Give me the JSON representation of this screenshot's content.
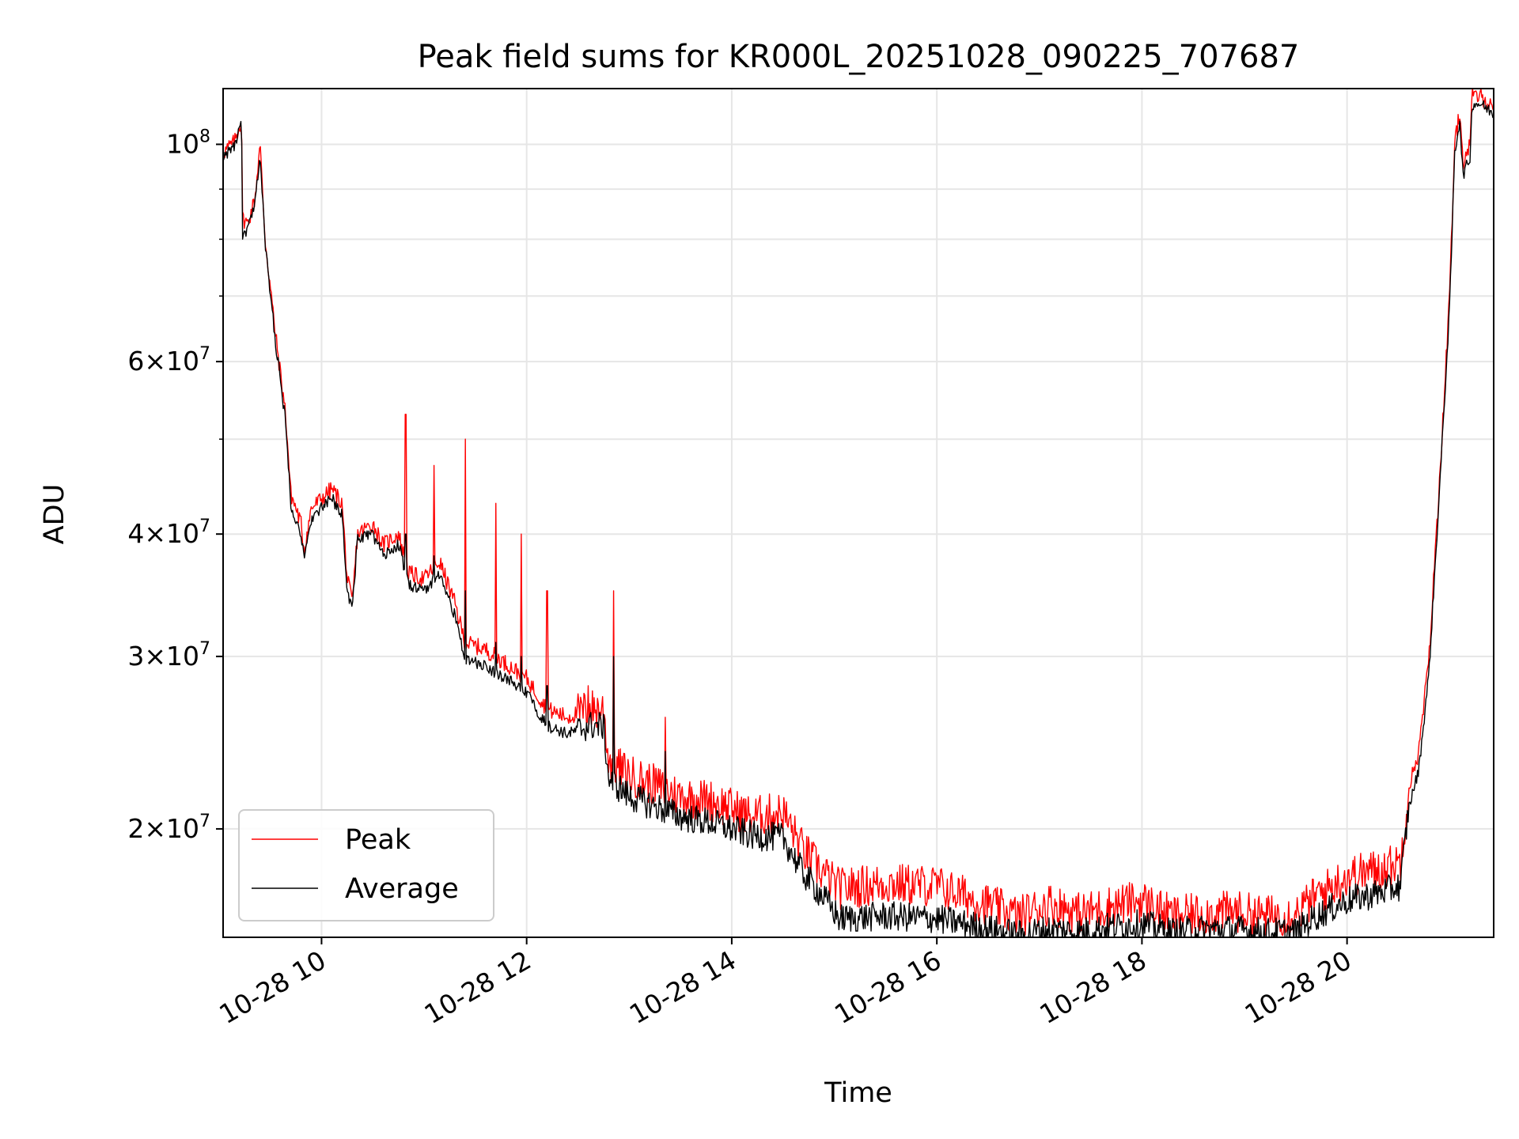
{
  "chart_data": {
    "type": "line",
    "title": "Peak field sums for KR000L_20251028_090225_707687",
    "xlabel": "Time",
    "ylabel": "ADU",
    "yscale": "log",
    "grid": true,
    "legend_position": "lower-left",
    "x_unit": "hours (2025-10-28)",
    "xlim": [
      9.04,
      21.43
    ],
    "ylim": [
      15500000,
      114000000
    ],
    "x_ticks": [
      {
        "value": 10,
        "label": "10-28 10"
      },
      {
        "value": 12,
        "label": "10-28 12"
      },
      {
        "value": 14,
        "label": "10-28 14"
      },
      {
        "value": 16,
        "label": "10-28 16"
      },
      {
        "value": 18,
        "label": "10-28 18"
      },
      {
        "value": 20,
        "label": "10-28 20"
      }
    ],
    "y_ticks": [
      {
        "value": 20000000,
        "mantissa": "2",
        "base": "10",
        "exp": "7"
      },
      {
        "value": 30000000,
        "mantissa": "3",
        "base": "10",
        "exp": "7"
      },
      {
        "value": 40000000,
        "mantissa": "4",
        "base": "10",
        "exp": "7"
      },
      {
        "value": 60000000,
        "mantissa": "6",
        "base": "10",
        "exp": "7"
      },
      {
        "value": 100000000,
        "mantissa": "",
        "base": "10",
        "exp": "8"
      }
    ],
    "y_minor_ticks": [
      50000000,
      70000000,
      80000000,
      90000000
    ],
    "series": [
      {
        "name": "Peak",
        "color": "#ff0000",
        "noise": 0.05,
        "points": [
          [
            9.04,
            98000000
          ],
          [
            9.1,
            99500000
          ],
          [
            9.15,
            100500000
          ],
          [
            9.22,
            106000000
          ],
          [
            9.23,
            84000000
          ],
          [
            9.28,
            83000000
          ],
          [
            9.35,
            88000000
          ],
          [
            9.4,
            100000000
          ],
          [
            9.45,
            80000000
          ],
          [
            9.55,
            64000000
          ],
          [
            9.65,
            53000000
          ],
          [
            9.7,
            44000000
          ],
          [
            9.8,
            41000000
          ],
          [
            9.83,
            38500000
          ],
          [
            9.9,
            42500000
          ],
          [
            10.1,
            44500000
          ],
          [
            10.2,
            43000000
          ],
          [
            10.25,
            36000000
          ],
          [
            10.3,
            34000000
          ],
          [
            10.35,
            40000000
          ],
          [
            10.5,
            41000000
          ],
          [
            10.6,
            39000000
          ],
          [
            10.75,
            40000000
          ],
          [
            10.85,
            36500000
          ],
          [
            11.0,
            36000000
          ],
          [
            11.15,
            37500000
          ],
          [
            11.3,
            34000000
          ],
          [
            11.4,
            31000000
          ],
          [
            11.6,
            30500000
          ],
          [
            11.8,
            29500000
          ],
          [
            12.0,
            28500000
          ],
          [
            12.2,
            26500000
          ],
          [
            12.4,
            26000000
          ],
          [
            12.6,
            26500000
          ],
          [
            12.75,
            26500000
          ],
          [
            12.8,
            23500000
          ],
          [
            13.0,
            22700000
          ],
          [
            13.2,
            22300000
          ],
          [
            13.5,
            21600000
          ],
          [
            13.8,
            21400000
          ],
          [
            14.2,
            20600000
          ],
          [
            14.5,
            20800000
          ],
          [
            14.7,
            19000000
          ],
          [
            14.9,
            18000000
          ],
          [
            15.05,
            17400000
          ],
          [
            15.5,
            17600000
          ],
          [
            16.0,
            17500000
          ],
          [
            16.4,
            16900000
          ],
          [
            16.8,
            16300000
          ],
          [
            17.1,
            16800000
          ],
          [
            17.4,
            16400000
          ],
          [
            17.7,
            16700000
          ],
          [
            18.0,
            16900000
          ],
          [
            18.3,
            16300000
          ],
          [
            18.6,
            16400000
          ],
          [
            18.9,
            16500000
          ],
          [
            19.2,
            16300000
          ],
          [
            19.5,
            16400000
          ],
          [
            19.7,
            17100000
          ],
          [
            20.0,
            17900000
          ],
          [
            20.3,
            18200000
          ],
          [
            20.52,
            18500000
          ],
          [
            20.6,
            22000000
          ],
          [
            20.7,
            24000000
          ],
          [
            20.8,
            30000000
          ],
          [
            20.9,
            45000000
          ],
          [
            21.0,
            70000000
          ],
          [
            21.05,
            100000000
          ],
          [
            21.1,
            108000000
          ],
          [
            21.13,
            96000000
          ],
          [
            21.2,
            100000000
          ],
          [
            21.22,
            112000000
          ],
          [
            21.3,
            112000000
          ],
          [
            21.43,
            109000000
          ]
        ],
        "spikes": [
          [
            10.82,
            53000000
          ],
          [
            11.1,
            47000000
          ],
          [
            11.4,
            50000000
          ],
          [
            11.7,
            43000000
          ],
          [
            11.95,
            40000000
          ],
          [
            12.2,
            35000000
          ],
          [
            12.6,
            28000000
          ],
          [
            12.85,
            35000000
          ],
          [
            13.35,
            26000000
          ]
        ]
      },
      {
        "name": "Average",
        "color": "#000000",
        "noise": 0.035,
        "points": [
          [
            9.04,
            97000000
          ],
          [
            9.1,
            98500000
          ],
          [
            9.15,
            99500000
          ],
          [
            9.22,
            105000000
          ],
          [
            9.23,
            80000000
          ],
          [
            9.28,
            82000000
          ],
          [
            9.35,
            86500000
          ],
          [
            9.4,
            98000000
          ],
          [
            9.45,
            79000000
          ],
          [
            9.55,
            63000000
          ],
          [
            9.65,
            52000000
          ],
          [
            9.7,
            43000000
          ],
          [
            9.8,
            40000000
          ],
          [
            9.83,
            37500000
          ],
          [
            9.9,
            41500000
          ],
          [
            10.1,
            43500000
          ],
          [
            10.2,
            42000000
          ],
          [
            10.25,
            35000000
          ],
          [
            10.3,
            33500000
          ],
          [
            10.35,
            39500000
          ],
          [
            10.5,
            40000000
          ],
          [
            10.6,
            38000000
          ],
          [
            10.75,
            39000000
          ],
          [
            10.85,
            35500000
          ],
          [
            11.0,
            35000000
          ],
          [
            11.15,
            36500000
          ],
          [
            11.3,
            33000000
          ],
          [
            11.4,
            29800000
          ],
          [
            11.6,
            29300000
          ],
          [
            11.8,
            28500000
          ],
          [
            12.0,
            27500000
          ],
          [
            12.2,
            25500000
          ],
          [
            12.4,
            25000000
          ],
          [
            12.6,
            25500000
          ],
          [
            12.75,
            25500000
          ],
          [
            12.8,
            22500000
          ],
          [
            13.0,
            21600000
          ],
          [
            13.2,
            21200000
          ],
          [
            13.5,
            20600000
          ],
          [
            13.8,
            20300000
          ],
          [
            14.2,
            19700000
          ],
          [
            14.5,
            19600000
          ],
          [
            14.7,
            18000000
          ],
          [
            14.9,
            17000000
          ],
          [
            15.05,
            16200000
          ],
          [
            15.5,
            16300000
          ],
          [
            16.0,
            16200000
          ],
          [
            16.4,
            15900000
          ],
          [
            16.8,
            15600000
          ],
          [
            17.1,
            15800000
          ],
          [
            17.4,
            15700000
          ],
          [
            17.7,
            15900000
          ],
          [
            18.0,
            16000000
          ],
          [
            18.3,
            15700000
          ],
          [
            18.6,
            15800000
          ],
          [
            18.9,
            15800000
          ],
          [
            19.2,
            15700000
          ],
          [
            19.5,
            15700000
          ],
          [
            19.7,
            16300000
          ],
          [
            20.0,
            16900000
          ],
          [
            20.3,
            17200000
          ],
          [
            20.52,
            17500000
          ],
          [
            20.6,
            21000000
          ],
          [
            20.7,
            23000000
          ],
          [
            20.8,
            29000000
          ],
          [
            20.9,
            44000000
          ],
          [
            21.0,
            68000000
          ],
          [
            21.05,
            98000000
          ],
          [
            21.1,
            106000000
          ],
          [
            21.13,
            93000000
          ],
          [
            21.2,
            97000000
          ],
          [
            21.22,
            110000000
          ],
          [
            21.3,
            110000000
          ],
          [
            21.43,
            107500000
          ]
        ],
        "spikes": [
          [
            10.82,
            40000000
          ],
          [
            11.1,
            38000000
          ],
          [
            11.4,
            35000000
          ],
          [
            11.7,
            31000000
          ],
          [
            11.95,
            30000000
          ],
          [
            12.2,
            28000000
          ],
          [
            12.85,
            30000000
          ],
          [
            13.35,
            24000000
          ]
        ]
      }
    ]
  }
}
